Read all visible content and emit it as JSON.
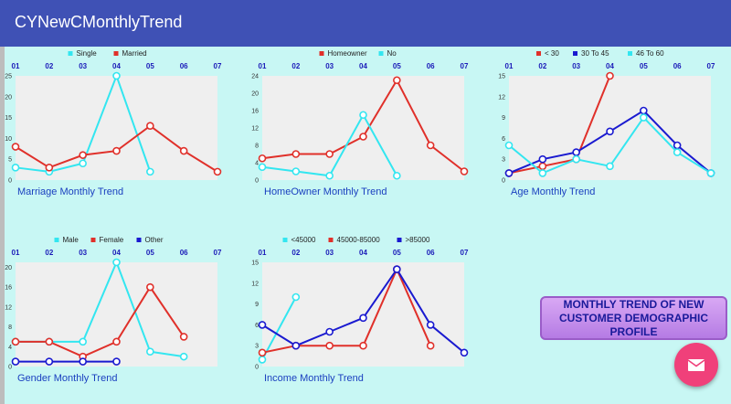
{
  "app": {
    "title": "CYNewCMonthlyTrend"
  },
  "action_button": {
    "label": "MONTHLY TREND OF NEW CUSTOMER DEMOGRAPHIC PROFILE"
  },
  "fab": {
    "icon": "mail-icon",
    "color": "#f0407a"
  },
  "colors": {
    "app_bar": "#3f51b5",
    "background": "#c8f7f4",
    "plot_area": "#efefef"
  },
  "chart_data": [
    {
      "type": "line",
      "title": "Marriage Monthly Trend",
      "categories": [
        "01",
        "02",
        "03",
        "04",
        "05",
        "06",
        "07"
      ],
      "ylim": [
        0,
        25
      ],
      "yticks": [
        0,
        5,
        10,
        15,
        20,
        25
      ],
      "legend": "top",
      "series": [
        {
          "name": "Single",
          "color": "#33e6f0",
          "values": [
            3,
            2,
            4,
            25,
            2,
            null,
            null
          ]
        },
        {
          "name": "Married",
          "color": "#e0302a",
          "values": [
            8,
            3,
            6,
            7,
            13,
            7,
            2
          ]
        }
      ]
    },
    {
      "type": "line",
      "title": "HomeOwner Monthly Trend",
      "categories": [
        "01",
        "02",
        "03",
        "04",
        "05",
        "06",
        "07"
      ],
      "ylim": [
        0,
        24
      ],
      "yticks": [
        0,
        4,
        8,
        12,
        16,
        20,
        24
      ],
      "legend": "top",
      "series": [
        {
          "name": "Homeowner",
          "color": "#e0302a",
          "values": [
            5,
            6,
            6,
            10,
            23,
            8,
            2
          ]
        },
        {
          "name": "No",
          "color": "#33e6f0",
          "values": [
            3,
            2,
            1,
            15,
            1,
            null,
            null
          ]
        }
      ]
    },
    {
      "type": "line",
      "title": "Age Monthly Trend",
      "categories": [
        "01",
        "02",
        "03",
        "04",
        "05",
        "06",
        "07"
      ],
      "ylim": [
        0,
        15
      ],
      "yticks": [
        0,
        3,
        6,
        9,
        12,
        15
      ],
      "legend": "top",
      "series": [
        {
          "name": "< 30",
          "color": "#e0302a",
          "values": [
            1,
            2,
            3,
            15,
            null,
            null,
            null
          ]
        },
        {
          "name": "30 To 45",
          "color": "#1a1ad0",
          "values": [
            1,
            3,
            4,
            7,
            10,
            5,
            1
          ]
        },
        {
          "name": "46 To 60",
          "color": "#33e6f0",
          "values": [
            5,
            1,
            3,
            2,
            9,
            4,
            1
          ]
        }
      ]
    },
    {
      "type": "line",
      "title": "Gender Monthly Trend",
      "categories": [
        "01",
        "02",
        "03",
        "04",
        "05",
        "06",
        "07"
      ],
      "ylim": [
        0,
        21
      ],
      "yticks": [
        0,
        4,
        8,
        12,
        16,
        20
      ],
      "legend": "top",
      "series": [
        {
          "name": "Male",
          "color": "#33e6f0",
          "values": [
            5,
            5,
            5,
            21,
            3,
            2,
            null
          ]
        },
        {
          "name": "Female",
          "color": "#e0302a",
          "values": [
            5,
            5,
            2,
            5,
            16,
            6,
            null
          ]
        },
        {
          "name": "Other",
          "color": "#1a1ad0",
          "values": [
            1,
            1,
            1,
            1,
            null,
            null,
            null
          ]
        }
      ]
    },
    {
      "type": "line",
      "title": "Income Monthly Trend",
      "categories": [
        "01",
        "02",
        "03",
        "04",
        "05",
        "06",
        "07"
      ],
      "ylim": [
        0,
        15
      ],
      "yticks": [
        0,
        3,
        6,
        9,
        12,
        15
      ],
      "legend": "top",
      "series": [
        {
          "name": "<45000",
          "color": "#33e6f0",
          "values": [
            1,
            10,
            null,
            null,
            null,
            null,
            null
          ]
        },
        {
          "name": "45000-85000",
          "color": "#e0302a",
          "values": [
            2,
            3,
            3,
            3,
            14,
            3,
            null
          ]
        },
        {
          "name": ">85000",
          "color": "#1a1ad0",
          "values": [
            6,
            3,
            5,
            7,
            14,
            6,
            2
          ]
        }
      ]
    }
  ]
}
